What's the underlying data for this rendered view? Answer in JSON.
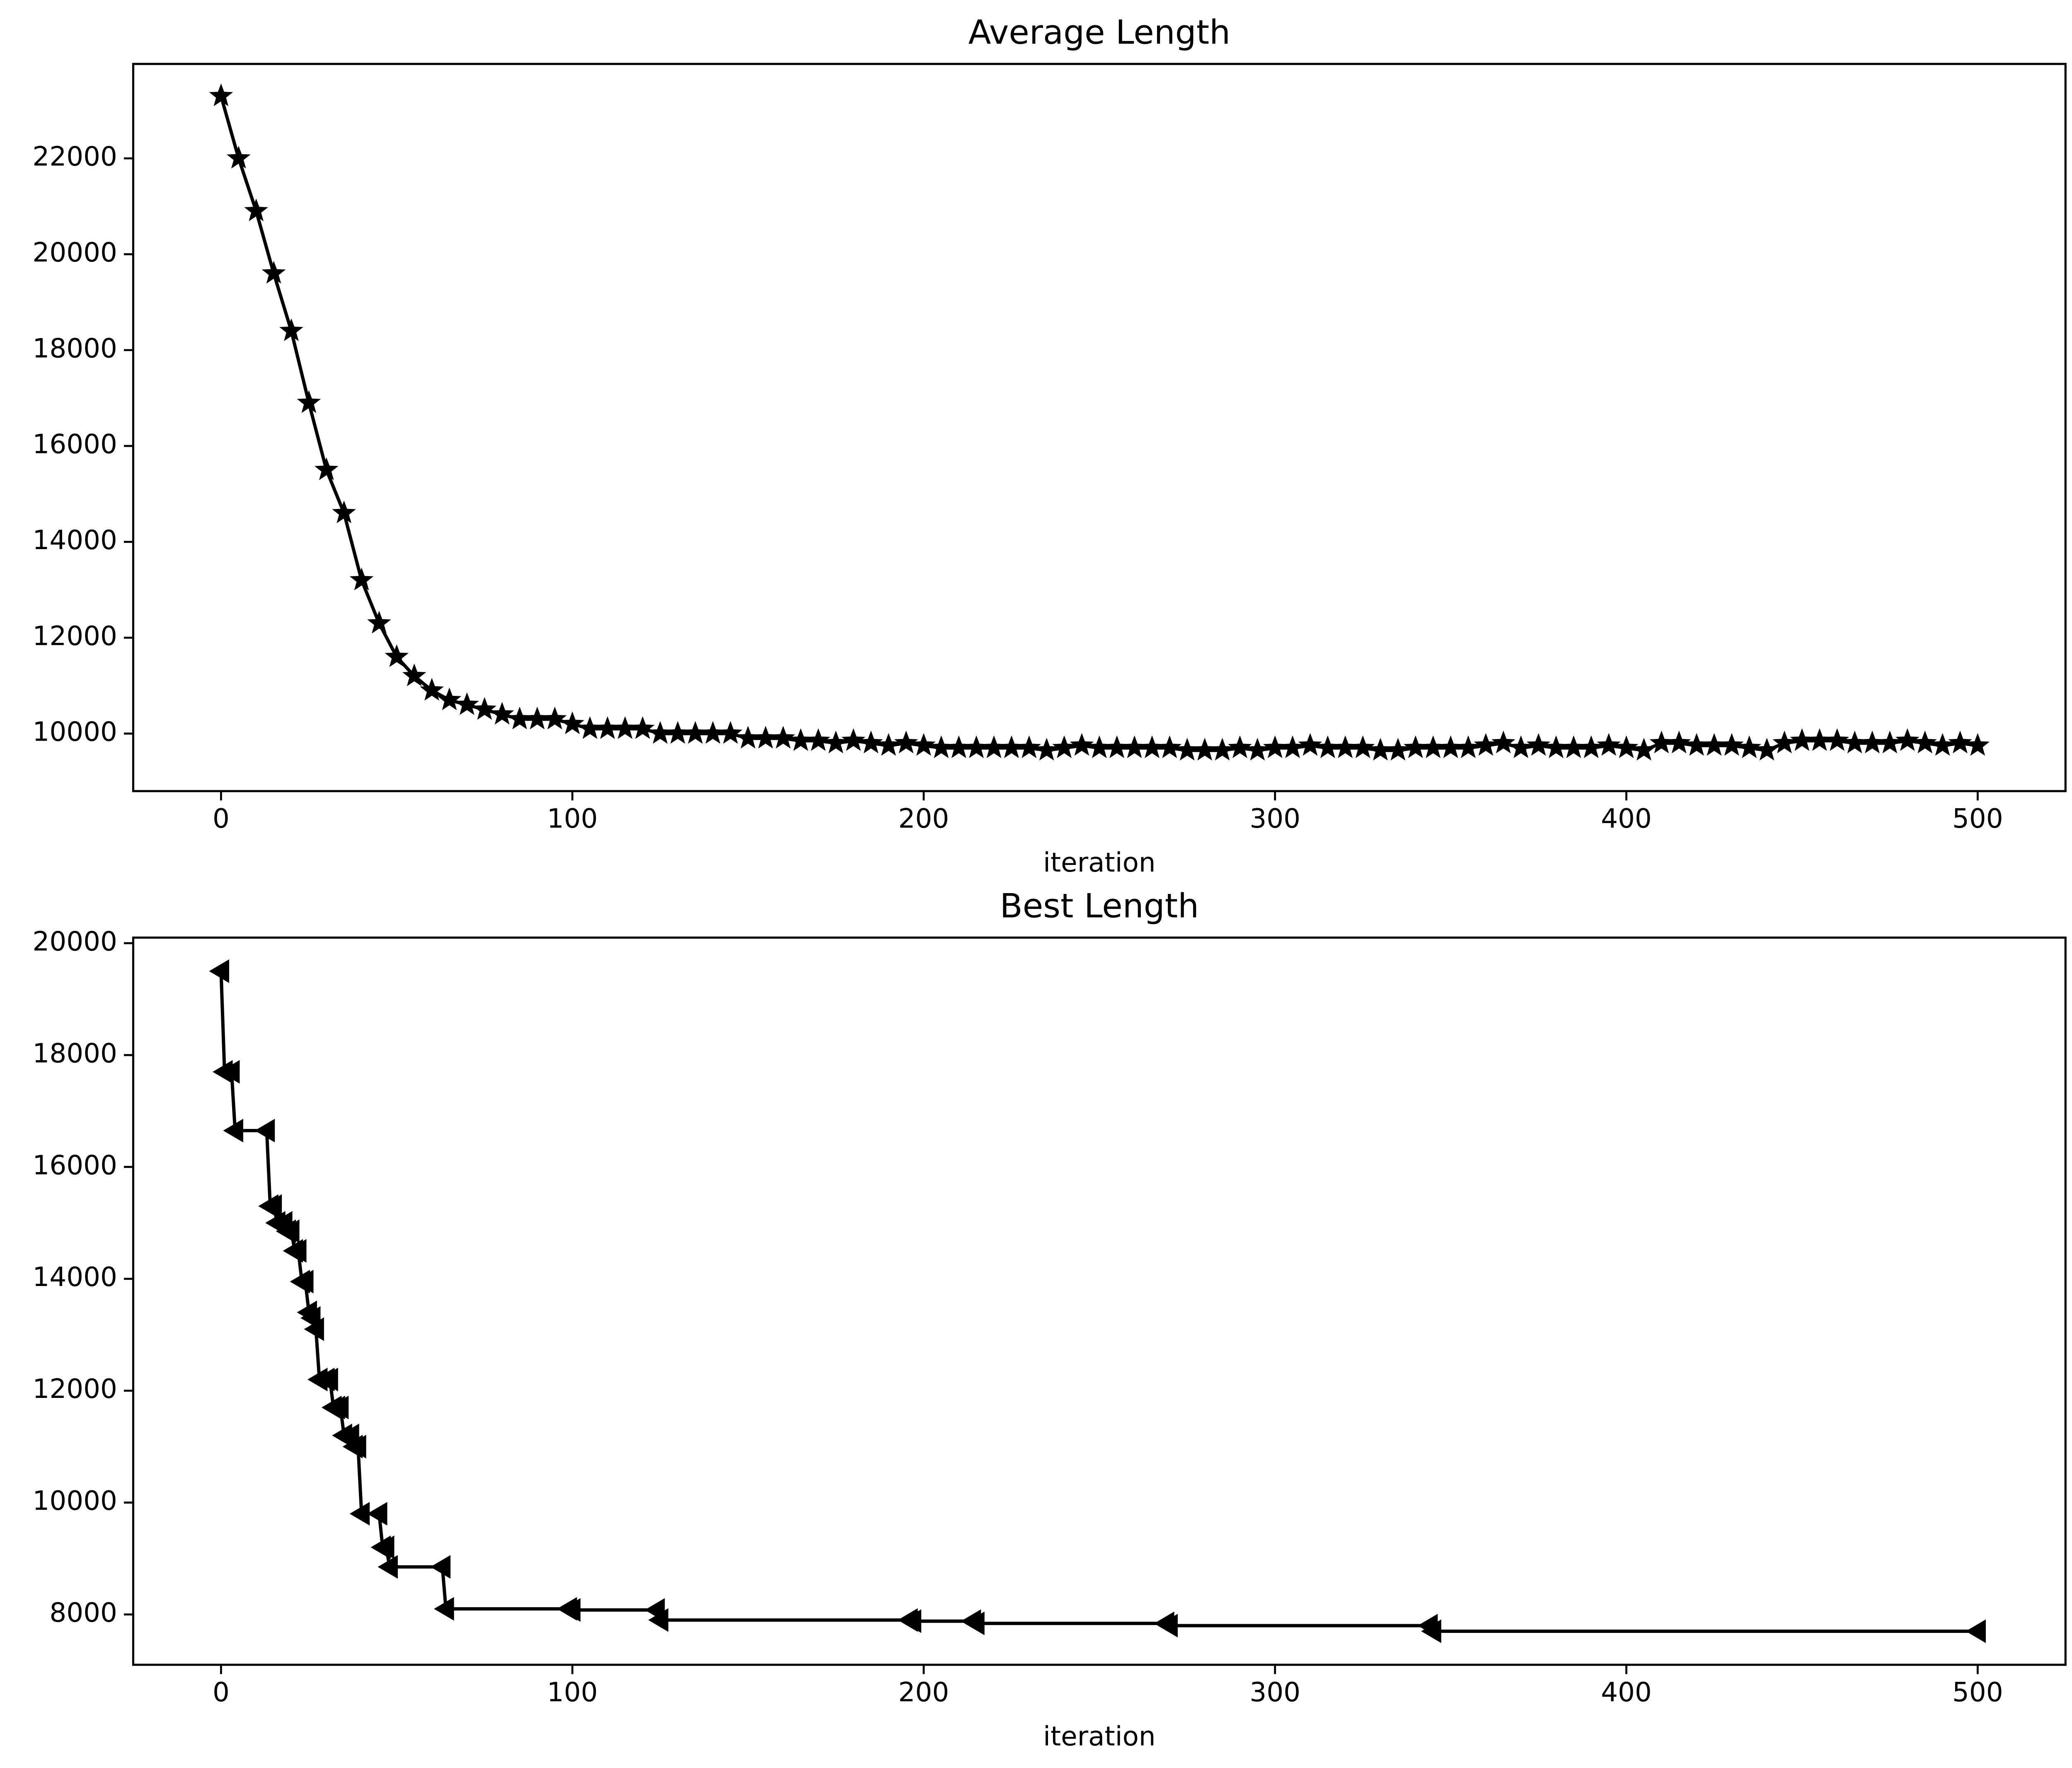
{
  "chart_data": [
    {
      "type": "line",
      "title": "Average Length",
      "xlabel": "iteration",
      "marker": "star",
      "color": "#000000",
      "x": [
        0,
        5,
        10,
        15,
        20,
        25,
        30,
        35,
        40,
        45,
        50,
        55,
        60,
        65,
        70,
        75,
        80,
        85,
        90,
        95,
        100,
        105,
        110,
        115,
        120,
        125,
        130,
        135,
        140,
        145,
        150,
        155,
        160,
        165,
        170,
        175,
        180,
        185,
        190,
        195,
        200,
        205,
        210,
        215,
        220,
        225,
        230,
        235,
        240,
        245,
        250,
        255,
        260,
        265,
        270,
        275,
        280,
        285,
        290,
        295,
        300,
        305,
        310,
        315,
        320,
        325,
        330,
        335,
        340,
        345,
        350,
        355,
        360,
        365,
        370,
        375,
        380,
        385,
        390,
        395,
        400,
        405,
        410,
        415,
        420,
        425,
        430,
        435,
        440,
        445,
        450,
        455,
        460,
        465,
        470,
        475,
        480,
        485,
        490,
        495,
        500
      ],
      "values": [
        23300,
        22000,
        20900,
        19600,
        18400,
        16900,
        15500,
        14600,
        13200,
        12300,
        11600,
        11200,
        10900,
        10700,
        10600,
        10500,
        10400,
        10300,
        10300,
        10300,
        10200,
        10100,
        10100,
        10100,
        10100,
        10000,
        10000,
        10000,
        10000,
        10000,
        9900,
        9900,
        9900,
        9850,
        9850,
        9800,
        9850,
        9800,
        9750,
        9800,
        9750,
        9700,
        9700,
        9700,
        9700,
        9700,
        9700,
        9650,
        9700,
        9750,
        9700,
        9700,
        9700,
        9700,
        9700,
        9650,
        9650,
        9650,
        9700,
        9650,
        9700,
        9700,
        9750,
        9700,
        9700,
        9700,
        9650,
        9650,
        9700,
        9700,
        9700,
        9700,
        9750,
        9800,
        9700,
        9750,
        9700,
        9700,
        9700,
        9750,
        9700,
        9650,
        9800,
        9800,
        9750,
        9750,
        9750,
        9700,
        9650,
        9800,
        9850,
        9850,
        9850,
        9800,
        9800,
        9800,
        9850,
        9800,
        9750,
        9800,
        9750
      ],
      "xlim": [
        -25,
        525
      ],
      "xticks": [
        0,
        100,
        200,
        300,
        400,
        500
      ],
      "ylim": [
        8800,
        23970
      ],
      "yticks": [
        10000,
        12000,
        14000,
        16000,
        18000,
        20000,
        22000
      ]
    },
    {
      "type": "line",
      "title": "Best Length",
      "xlabel": "iteration",
      "marker": "triangle-left",
      "color": "#000000",
      "x": [
        0,
        1,
        3,
        4,
        13,
        14,
        15,
        16,
        18,
        19,
        20,
        21,
        22,
        23,
        24,
        25,
        26,
        27,
        28,
        30,
        31,
        32,
        33,
        34,
        35,
        37,
        38,
        39,
        40,
        45,
        46,
        47,
        48,
        63,
        64,
        99,
        100,
        124,
        125,
        196,
        197,
        214,
        215,
        269,
        270,
        344,
        345,
        500
      ],
      "values": [
        19500,
        17700,
        17700,
        16650,
        16650,
        15300,
        15300,
        15000,
        15000,
        14850,
        14850,
        14500,
        14500,
        13950,
        13950,
        13400,
        13300,
        13100,
        12200,
        12200,
        12200,
        11700,
        11700,
        11700,
        11200,
        11200,
        11000,
        11000,
        9800,
        9800,
        9200,
        9200,
        8850,
        8850,
        8100,
        8100,
        8080,
        8080,
        7900,
        7900,
        7880,
        7880,
        7840,
        7840,
        7800,
        7800,
        7700,
        7700
      ],
      "xlim": [
        -25,
        525
      ],
      "xticks": [
        0,
        100,
        200,
        300,
        400,
        500
      ],
      "ylim": [
        7100,
        20100
      ],
      "yticks": [
        8000,
        10000,
        12000,
        14000,
        16000,
        18000,
        20000
      ]
    }
  ]
}
